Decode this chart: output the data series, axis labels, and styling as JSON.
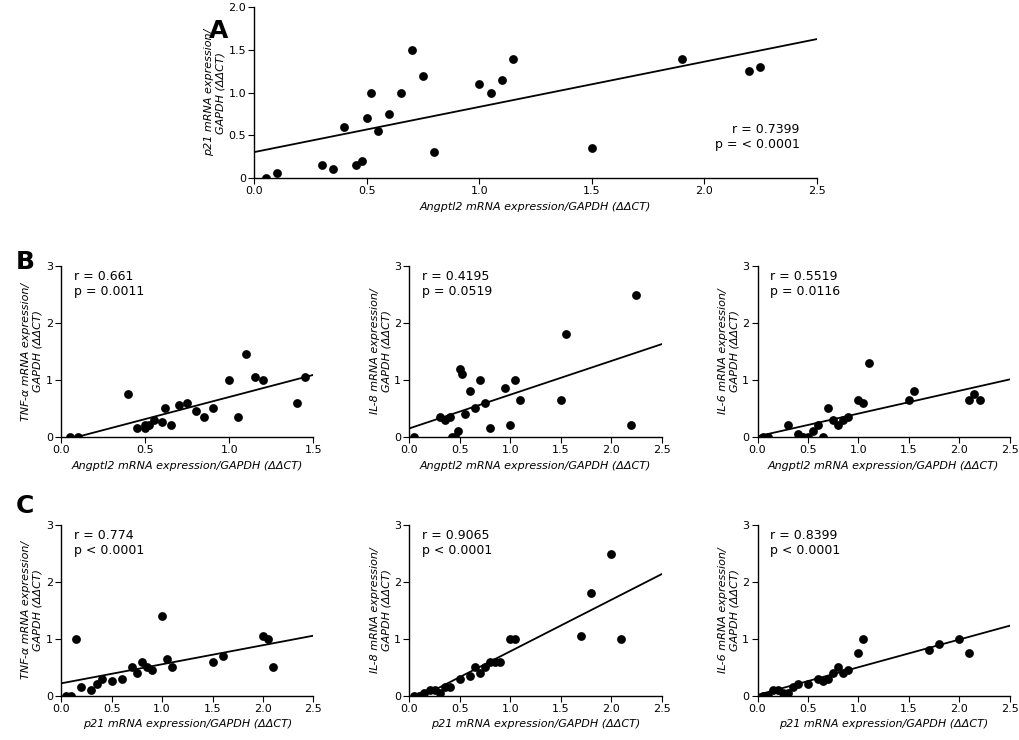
{
  "panel_A": {
    "x": [
      0.05,
      0.1,
      0.3,
      0.35,
      0.4,
      0.45,
      0.48,
      0.5,
      0.52,
      0.55,
      0.6,
      0.65,
      0.7,
      0.75,
      0.8,
      1.0,
      1.05,
      1.1,
      1.15,
      1.5,
      1.9,
      2.2,
      2.25
    ],
    "y": [
      0.0,
      0.05,
      0.15,
      0.1,
      0.6,
      0.15,
      0.2,
      0.7,
      1.0,
      0.55,
      0.75,
      1.0,
      1.5,
      1.2,
      0.3,
      1.1,
      1.0,
      1.15,
      1.4,
      0.35,
      1.4,
      1.25,
      1.3
    ],
    "r": "0.7399",
    "p": "p = < 0.0001",
    "ann_loc": "lower_right",
    "xlabel": "Angptl2 mRNA expression/GAPDH (ΔΔCT)",
    "ylabel": "p21 mRNA expression/\nGAPDH (ΔΔCT)",
    "xlim": [
      0,
      2.5
    ],
    "ylim": [
      0,
      2
    ],
    "xticks": [
      0.0,
      0.5,
      1.0,
      1.5,
      2.0,
      2.5
    ],
    "yticks": [
      0,
      0.5,
      1.0,
      1.5,
      2.0
    ],
    "xticklabels": [
      "0.0",
      "0.5",
      "1.0",
      "1.5",
      "2.0",
      "2.5"
    ],
    "yticklabels": [
      "0",
      "0.5",
      "1.0",
      "1.5",
      "2.0"
    ]
  },
  "panel_B1": {
    "x": [
      0.05,
      0.1,
      0.4,
      0.45,
      0.5,
      0.5,
      0.52,
      0.55,
      0.6,
      0.62,
      0.65,
      0.7,
      0.75,
      0.8,
      0.85,
      0.9,
      1.0,
      1.05,
      1.1,
      1.15,
      1.2,
      1.4,
      1.45
    ],
    "y": [
      0.0,
      0.0,
      0.75,
      0.15,
      0.2,
      0.15,
      0.2,
      0.3,
      0.25,
      0.5,
      0.2,
      0.55,
      0.6,
      0.45,
      0.35,
      0.5,
      1.0,
      0.35,
      1.45,
      1.05,
      1.0,
      0.6,
      1.05
    ],
    "r": "0.661",
    "p": "p = 0.0011",
    "ann_loc": "upper_left",
    "xlabel": "Angptl2 mRNA expression/GAPDH (ΔΔCT)",
    "ylabel": "TNF-α mRNA expression/\nGAPDH (ΔΔCT)",
    "xlim": [
      0,
      1.5
    ],
    "ylim": [
      0,
      3
    ],
    "xticks": [
      0.0,
      0.5,
      1.0,
      1.5
    ],
    "yticks": [
      0,
      1,
      2,
      3
    ],
    "xticklabels": [
      "0.0",
      "0.5",
      "1.0",
      "1.5"
    ],
    "yticklabels": [
      "0",
      "1",
      "2",
      "3"
    ]
  },
  "panel_B2": {
    "x": [
      0.05,
      0.3,
      0.35,
      0.4,
      0.42,
      0.45,
      0.48,
      0.5,
      0.52,
      0.55,
      0.6,
      0.65,
      0.7,
      0.75,
      0.8,
      0.95,
      1.0,
      1.05,
      1.1,
      1.5,
      1.55,
      2.2,
      2.25
    ],
    "y": [
      0.0,
      0.35,
      0.3,
      0.35,
      0.0,
      0.0,
      0.1,
      1.2,
      1.1,
      0.4,
      0.8,
      0.5,
      1.0,
      0.6,
      0.15,
      0.85,
      0.2,
      1.0,
      0.65,
      0.65,
      1.8,
      0.2,
      2.5
    ],
    "r": "0.4195",
    "p": "p = 0.0519",
    "ann_loc": "upper_left",
    "xlabel": "Angptl2 mRNA expression/GAPDH (ΔΔCT)",
    "ylabel": "IL-8 mRNA expression/\nGAPDH (ΔΔCT)",
    "xlim": [
      0,
      2.5
    ],
    "ylim": [
      0,
      3
    ],
    "xticks": [
      0.0,
      0.5,
      1.0,
      1.5,
      2.0,
      2.5
    ],
    "yticks": [
      0,
      1,
      2,
      3
    ],
    "xticklabels": [
      "0.0",
      "0.5",
      "1.0",
      "1.5",
      "2.0",
      "2.5"
    ],
    "yticklabels": [
      "0",
      "1",
      "2",
      "3"
    ]
  },
  "panel_B3": {
    "x": [
      0.05,
      0.1,
      0.3,
      0.4,
      0.45,
      0.5,
      0.55,
      0.6,
      0.65,
      0.7,
      0.75,
      0.8,
      0.85,
      0.9,
      1.0,
      1.05,
      1.1,
      1.5,
      1.55,
      2.1,
      2.15,
      2.2
    ],
    "y": [
      0.0,
      0.0,
      0.2,
      0.05,
      0.0,
      0.0,
      0.1,
      0.2,
      0.0,
      0.5,
      0.3,
      0.2,
      0.3,
      0.35,
      0.65,
      0.6,
      1.3,
      0.65,
      0.8,
      0.65,
      0.75,
      0.65
    ],
    "r": "0.5519",
    "p": "p = 0.0116",
    "ann_loc": "upper_left",
    "xlabel": "Angptl2 mRNA expression/GAPDH (ΔΔCT)",
    "ylabel": "IL-6 mRNA expression/\nGAPDH (ΔΔCT)",
    "xlim": [
      0,
      2.5
    ],
    "ylim": [
      0,
      3
    ],
    "xticks": [
      0.0,
      0.5,
      1.0,
      1.5,
      2.0,
      2.5
    ],
    "yticks": [
      0,
      1,
      2,
      3
    ],
    "xticklabels": [
      "0.0",
      "0.5",
      "1.0",
      "1.5",
      "2.0",
      "2.5"
    ],
    "yticklabels": [
      "0",
      "1",
      "2",
      "3"
    ]
  },
  "panel_C1": {
    "x": [
      0.05,
      0.1,
      0.15,
      0.2,
      0.3,
      0.35,
      0.4,
      0.5,
      0.6,
      0.7,
      0.75,
      0.8,
      0.85,
      0.9,
      1.0,
      1.05,
      1.1,
      1.5,
      1.6,
      2.0,
      2.05,
      2.1
    ],
    "y": [
      0.0,
      0.0,
      1.0,
      0.15,
      0.1,
      0.2,
      0.3,
      0.25,
      0.3,
      0.5,
      0.4,
      0.6,
      0.5,
      0.45,
      1.4,
      0.65,
      0.5,
      0.6,
      0.7,
      1.05,
      1.0,
      0.5
    ],
    "r": "0.774",
    "p": "p < 0.0001",
    "ann_loc": "upper_left",
    "xlabel": "p21 mRNA expression/GAPDH (ΔΔCT)",
    "ylabel": "TNF-α mRNA expression/\nGAPDH (ΔΔCT)",
    "xlim": [
      0,
      2.5
    ],
    "ylim": [
      0,
      3
    ],
    "xticks": [
      0.0,
      0.5,
      1.0,
      1.5,
      2.0,
      2.5
    ],
    "yticks": [
      0,
      1,
      2,
      3
    ],
    "xticklabels": [
      "0.0",
      "0.5",
      "1.0",
      "1.5",
      "2.0",
      "2.5"
    ],
    "yticklabels": [
      "0",
      "1",
      "2",
      "3"
    ]
  },
  "panel_C2": {
    "x": [
      0.05,
      0.1,
      0.15,
      0.2,
      0.25,
      0.3,
      0.35,
      0.4,
      0.5,
      0.6,
      0.65,
      0.7,
      0.75,
      0.8,
      0.85,
      0.9,
      1.0,
      1.05,
      1.7,
      1.8,
      2.0,
      2.1
    ],
    "y": [
      0.0,
      0.0,
      0.05,
      0.1,
      0.1,
      0.05,
      0.15,
      0.15,
      0.3,
      0.35,
      0.5,
      0.4,
      0.5,
      0.6,
      0.6,
      0.6,
      1.0,
      1.0,
      1.05,
      1.8,
      2.5,
      1.0
    ],
    "r": "0.9065",
    "p": "p < 0.0001",
    "ann_loc": "upper_left",
    "xlabel": "p21 mRNA expression/GAPDH (ΔΔCT)",
    "ylabel": "IL-8 mRNA expression/\nGAPDH (ΔΔCT)",
    "xlim": [
      0,
      2.5
    ],
    "ylim": [
      0,
      3
    ],
    "xticks": [
      0.0,
      0.5,
      1.0,
      1.5,
      2.0,
      2.5
    ],
    "yticks": [
      0,
      1,
      2,
      3
    ],
    "xticklabels": [
      "0.0",
      "0.5",
      "1.0",
      "1.5",
      "2.0",
      "2.5"
    ],
    "yticklabels": [
      "0",
      "1",
      "2",
      "3"
    ]
  },
  "panel_C3": {
    "x": [
      0.05,
      0.1,
      0.15,
      0.2,
      0.25,
      0.3,
      0.35,
      0.4,
      0.5,
      0.6,
      0.65,
      0.7,
      0.75,
      0.8,
      0.85,
      0.9,
      1.0,
      1.05,
      1.7,
      1.8,
      2.0,
      2.1
    ],
    "y": [
      0.0,
      0.0,
      0.1,
      0.1,
      0.05,
      0.05,
      0.15,
      0.2,
      0.2,
      0.3,
      0.25,
      0.3,
      0.4,
      0.5,
      0.4,
      0.45,
      0.75,
      1.0,
      0.8,
      0.9,
      1.0,
      0.75
    ],
    "r": "0.8399",
    "p": "p < 0.0001",
    "ann_loc": "upper_left",
    "xlabel": "p21 mRNA expression/GAPDH (ΔΔCT)",
    "ylabel": "IL-6 mRNA expression/\nGAPDH (ΔΔCT)",
    "xlim": [
      0,
      2.5
    ],
    "ylim": [
      0,
      3
    ],
    "xticks": [
      0.0,
      0.5,
      1.0,
      1.5,
      2.0,
      2.5
    ],
    "yticks": [
      0,
      1,
      2,
      3
    ],
    "xticklabels": [
      "0.0",
      "0.5",
      "1.0",
      "1.5",
      "2.0",
      "2.5"
    ],
    "yticklabels": [
      "0",
      "1",
      "2",
      "3"
    ]
  },
  "dot_color": "#000000",
  "line_color": "#000000",
  "dot_size": 40,
  "background_color": "#ffffff",
  "label_fontsize": 8,
  "tick_fontsize": 8,
  "annotation_fontsize": 9,
  "panel_label_fontsize": 18
}
